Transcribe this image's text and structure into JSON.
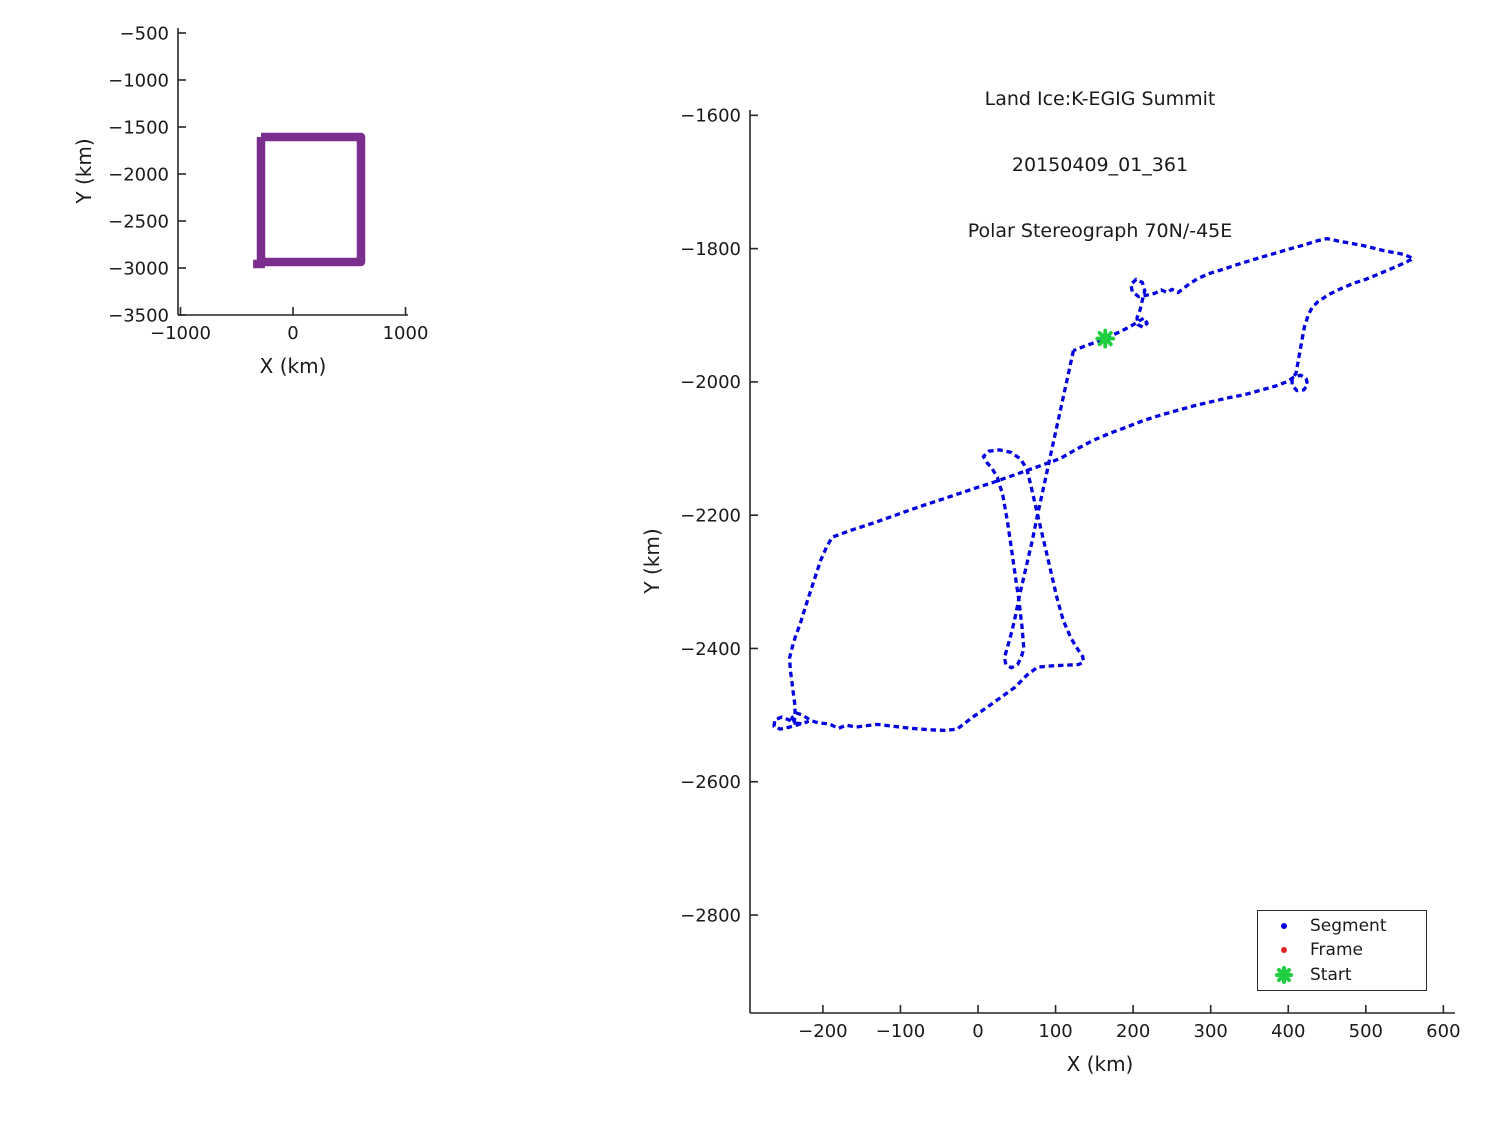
{
  "figure_name": "flight-track-figure",
  "overview_plot": {
    "xlabel": "X (km)",
    "ylabel": "Y (km)",
    "accent_color": "#7B2E8E"
  },
  "main_plot": {
    "title_lines": [
      "Land Ice:K-EGIG Summit",
      "20150409_01_361",
      "Polar Stereograph 70N/-45E"
    ],
    "xlabel": "X (km)",
    "ylabel": "Y (km)",
    "legend": {
      "position": "lower right",
      "entries": [
        {
          "label": "Segment",
          "marker": "dot",
          "color": "#0202E0"
        },
        {
          "label": "Frame",
          "marker": "dot",
          "color": "#E02525"
        },
        {
          "label": "Start",
          "marker": "burst",
          "color": "#1FCE3F"
        }
      ]
    }
  },
  "chart_data": [
    {
      "id": "overview",
      "type": "line",
      "title": "",
      "xlabel": "X (km)",
      "ylabel": "Y (km)",
      "xlim": [
        -1022,
        1022
      ],
      "ylim": [
        -3500,
        -447
      ],
      "xticks": [
        -1000,
        0,
        1000
      ],
      "yticks": [
        -500,
        -1000,
        -1500,
        -2000,
        -2500,
        -3000,
        -3500
      ],
      "grid": false,
      "series": [
        {
          "name": "coverage-extent-box",
          "color": "#7B2E8E",
          "line_width": 8.5,
          "dashed": false,
          "points": [
            [
              -284,
              -1606
            ],
            [
              604,
              -1606
            ],
            [
              604,
              -2936
            ],
            [
              -284,
              -2936
            ],
            [
              -284,
              -1606
            ]
          ]
        },
        {
          "name": "coverage-extent-step",
          "color": "#7B2E8E",
          "line_width": 8.5,
          "dashed": false,
          "points": [
            [
              -355,
              -2957
            ],
            [
              -250,
              -2957
            ]
          ]
        }
      ]
    },
    {
      "id": "flight-track",
      "type": "scatter",
      "title": "Land Ice:K-EGIG Summit 20150409_01_361 Polar Stereograph 70N/-45E",
      "xlabel": "X (km)",
      "ylabel": "Y (km)",
      "xlim": [
        -294,
        615
      ],
      "ylim": [
        -2947,
        -1592
      ],
      "xticks": [
        -200,
        -100,
        0,
        100,
        200,
        300,
        400,
        500,
        600
      ],
      "yticks": [
        -1600,
        -1800,
        -2000,
        -2200,
        -2400,
        -2600,
        -2800
      ],
      "grid": false,
      "legend_position": "lower right",
      "series": [
        {
          "name": "Segment",
          "color": "#0202E0",
          "line_width": 3.3,
          "dashed": true,
          "points": [
            [
              123,
              -1953
            ],
            [
              108,
              -2033
            ],
            [
              93,
              -2113
            ],
            [
              85,
              -2156
            ],
            [
              77,
              -2198
            ],
            [
              70,
              -2238
            ],
            [
              62,
              -2278
            ],
            [
              54,
              -2318
            ],
            [
              47,
              -2358
            ],
            [
              41,
              -2386
            ],
            [
              37,
              -2402
            ],
            [
              34,
              -2414
            ],
            [
              36,
              -2424
            ],
            [
              43,
              -2429
            ],
            [
              51,
              -2424
            ],
            [
              56,
              -2412
            ],
            [
              59,
              -2400
            ],
            [
              57,
              -2370
            ],
            [
              53,
              -2330
            ],
            [
              48,
              -2290
            ],
            [
              43,
              -2250
            ],
            [
              38,
              -2210
            ],
            [
              32,
              -2170
            ],
            [
              25,
              -2143
            ],
            [
              17,
              -2128
            ],
            [
              12,
              -2122
            ],
            [
              7,
              -2112
            ],
            [
              14,
              -2104
            ],
            [
              28,
              -2102
            ],
            [
              43,
              -2106
            ],
            [
              55,
              -2116
            ],
            [
              63,
              -2131
            ],
            [
              68,
              -2155
            ],
            [
              74,
              -2185
            ],
            [
              81,
              -2220
            ],
            [
              88,
              -2255
            ],
            [
              95,
              -2290
            ],
            [
              102,
              -2325
            ],
            [
              110,
              -2358
            ],
            [
              120,
              -2385
            ],
            [
              129,
              -2402
            ],
            [
              135,
              -2412
            ],
            [
              136,
              -2420
            ],
            [
              130,
              -2424
            ],
            [
              115,
              -2425
            ],
            [
              96,
              -2426
            ],
            [
              77,
              -2428
            ],
            [
              63,
              -2440
            ],
            [
              48,
              -2458
            ],
            [
              31,
              -2472
            ],
            [
              12,
              -2488
            ],
            [
              -8,
              -2504
            ],
            [
              -27,
              -2521
            ],
            [
              -42,
              -2523
            ],
            [
              -62,
              -2522
            ],
            [
              -85,
              -2520
            ],
            [
              -108,
              -2517
            ],
            [
              -130,
              -2514
            ],
            [
              -145,
              -2516
            ],
            [
              -158,
              -2518
            ],
            [
              -170,
              -2515
            ],
            [
              -180,
              -2520
            ],
            [
              -192,
              -2513
            ],
            [
              -205,
              -2512
            ],
            [
              -216,
              -2508
            ],
            [
              -226,
              -2500
            ],
            [
              -234,
              -2497
            ],
            [
              -240,
              -2504
            ],
            [
              -236,
              -2512
            ],
            [
              -227,
              -2513
            ],
            [
              -220,
              -2510
            ],
            [
              -231,
              -2514
            ],
            [
              -243,
              -2518
            ],
            [
              -255,
              -2521
            ],
            [
              -263,
              -2517
            ],
            [
              -262,
              -2507
            ],
            [
              -253,
              -2503
            ],
            [
              -244,
              -2507
            ],
            [
              -237,
              -2512
            ],
            [
              -236,
              -2500
            ],
            [
              -236,
              -2486
            ],
            [
              -238,
              -2468
            ],
            [
              -240,
              -2450
            ],
            [
              -242,
              -2432
            ],
            [
              -243,
              -2414
            ],
            [
              -240,
              -2400
            ],
            [
              -236,
              -2384
            ],
            [
              -229,
              -2362
            ],
            [
              -221,
              -2332
            ],
            [
              -212,
              -2300
            ],
            [
              -203,
              -2268
            ],
            [
              -195,
              -2247
            ],
            [
              -188,
              -2233
            ],
            [
              -162,
              -2222
            ],
            [
              -133,
              -2211
            ],
            [
              -104,
              -2199
            ],
            [
              -75,
              -2187
            ],
            [
              -46,
              -2176
            ],
            [
              -23,
              -2167
            ],
            [
              0,
              -2158
            ],
            [
              19,
              -2151
            ],
            [
              41,
              -2142
            ],
            [
              63,
              -2133
            ],
            [
              85,
              -2124
            ],
            [
              106,
              -2115
            ],
            [
              127,
              -2101
            ],
            [
              148,
              -2088
            ],
            [
              170,
              -2077
            ],
            [
              191,
              -2068
            ],
            [
              213,
              -2058
            ],
            [
              235,
              -2050
            ],
            [
              256,
              -2043
            ],
            [
              278,
              -2036
            ],
            [
              300,
              -2030
            ],
            [
              322,
              -2024
            ],
            [
              344,
              -2019
            ],
            [
              366,
              -2012
            ],
            [
              384,
              -2006
            ],
            [
              398,
              -2000
            ],
            [
              407,
              -1993
            ],
            [
              416,
              -1990
            ],
            [
              423,
              -1995
            ],
            [
              425,
              -2004
            ],
            [
              420,
              -2012
            ],
            [
              411,
              -2013
            ],
            [
              405,
              -2005
            ],
            [
              405,
              -1996
            ],
            [
              410,
              -1987
            ],
            [
              413,
              -1968
            ],
            [
              417,
              -1942
            ],
            [
              421,
              -1917
            ],
            [
              426,
              -1899
            ],
            [
              431,
              -1888
            ],
            [
              438,
              -1880
            ],
            [
              452,
              -1869
            ],
            [
              468,
              -1860
            ],
            [
              484,
              -1852
            ],
            [
              500,
              -1846
            ],
            [
              517,
              -1838
            ],
            [
              533,
              -1830
            ],
            [
              547,
              -1823
            ],
            [
              561,
              -1815
            ],
            [
              550,
              -1809
            ],
            [
              537,
              -1806
            ],
            [
              523,
              -1803
            ],
            [
              509,
              -1799
            ],
            [
              495,
              -1795
            ],
            [
              481,
              -1792
            ],
            [
              466,
              -1789
            ],
            [
              450,
              -1785
            ],
            [
              435,
              -1789
            ],
            [
              419,
              -1795
            ],
            [
              403,
              -1800
            ],
            [
              386,
              -1806
            ],
            [
              368,
              -1812
            ],
            [
              351,
              -1818
            ],
            [
              334,
              -1824
            ],
            [
              316,
              -1831
            ],
            [
              299,
              -1837
            ],
            [
              283,
              -1845
            ],
            [
              270,
              -1855
            ],
            [
              258,
              -1866
            ],
            [
              250,
              -1861
            ],
            [
              244,
              -1866
            ],
            [
              236,
              -1862
            ],
            [
              228,
              -1867
            ],
            [
              217,
              -1870
            ],
            [
              207,
              -1872
            ],
            [
              199,
              -1865
            ],
            [
              197,
              -1854
            ],
            [
              204,
              -1846
            ],
            [
              212,
              -1851
            ],
            [
              215,
              -1863
            ],
            [
              212,
              -1877
            ],
            [
              209,
              -1892
            ],
            [
              205,
              -1904
            ],
            [
              206,
              -1914
            ],
            [
              213,
              -1918
            ],
            [
              218,
              -1912
            ],
            [
              214,
              -1904
            ],
            [
              206,
              -1910
            ],
            [
              196,
              -1917
            ],
            [
              186,
              -1923
            ],
            [
              175,
              -1929
            ],
            [
              164,
              -1935
            ],
            [
              150,
              -1941
            ],
            [
              136,
              -1947
            ],
            [
              123,
              -1953
            ]
          ]
        },
        {
          "name": "Frame",
          "color": "#E02525",
          "line_width": 3.3,
          "dashed": true,
          "points": []
        },
        {
          "name": "Start",
          "color": "#1FCE3F",
          "marker": "burst",
          "points": [
            [
              164,
              -1935
            ]
          ]
        }
      ]
    }
  ]
}
